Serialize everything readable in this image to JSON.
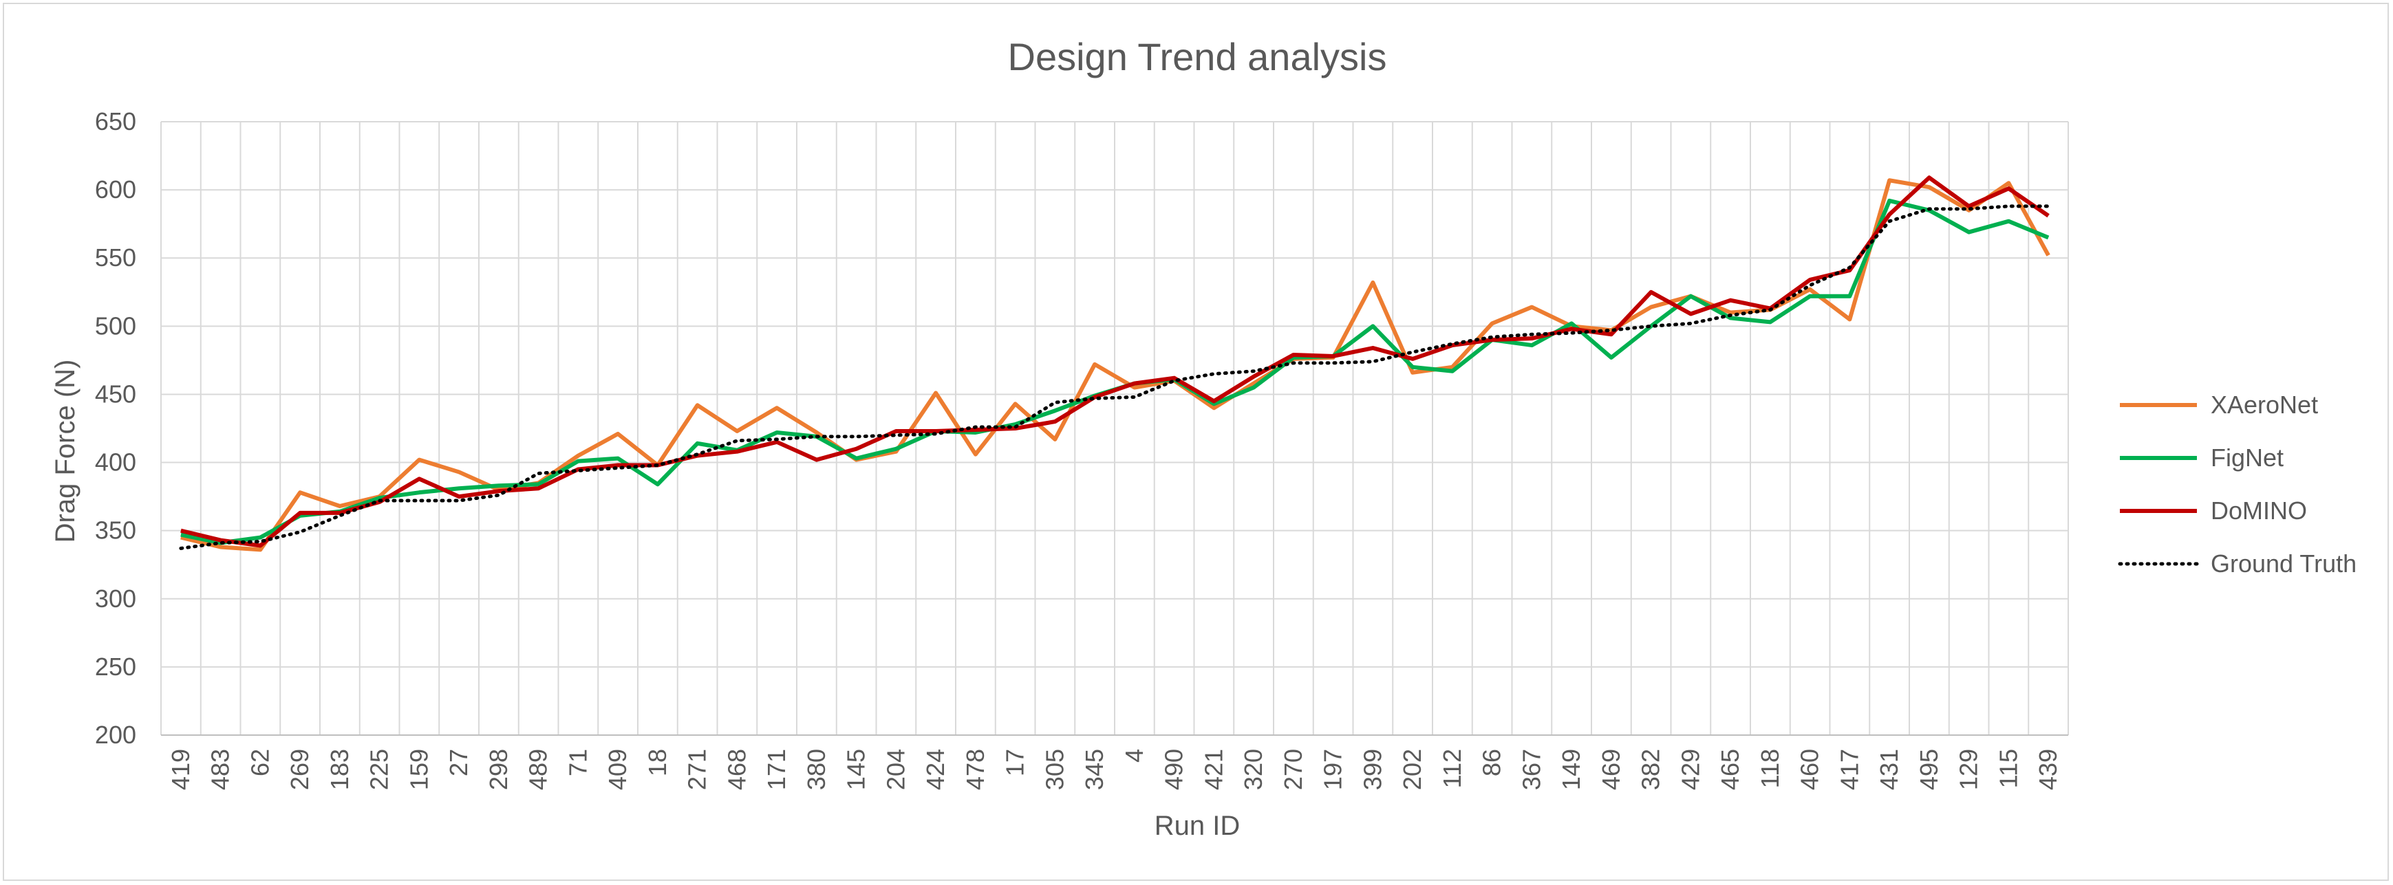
{
  "chart_data": {
    "type": "line",
    "title": "Design Trend analysis",
    "xlabel": "Run ID",
    "ylabel": "Drag Force (N)",
    "ylim": [
      200,
      650
    ],
    "ytick_step": 50,
    "grid": true,
    "legend_position": "right",
    "categories": [
      "419",
      "483",
      "62",
      "269",
      "183",
      "225",
      "159",
      "27",
      "298",
      "489",
      "71",
      "409",
      "18",
      "271",
      "468",
      "171",
      "380",
      "145",
      "204",
      "424",
      "478",
      "17",
      "305",
      "345",
      "4",
      "490",
      "421",
      "320",
      "270",
      "197",
      "399",
      "202",
      "112",
      "86",
      "367",
      "149",
      "469",
      "382",
      "429",
      "465",
      "118",
      "460",
      "417",
      "431",
      "495",
      "129",
      "115",
      "439"
    ],
    "series": [
      {
        "name": "XAeroNet",
        "color": "#ED7D31",
        "dash": "solid",
        "values": [
          345,
          338,
          336,
          378,
          368,
          375,
          402,
          393,
          380,
          385,
          405,
          421,
          398,
          442,
          423,
          440,
          422,
          402,
          408,
          451,
          406,
          443,
          417,
          472,
          455,
          460,
          440,
          458,
          476,
          477,
          532,
          466,
          470,
          502,
          514,
          500,
          497,
          514,
          522,
          510,
          512,
          527,
          505,
          607,
          602,
          585,
          605,
          552
        ]
      },
      {
        "name": "FigNet",
        "color": "#00B050",
        "dash": "solid",
        "values": [
          347,
          341,
          345,
          361,
          364,
          374,
          378,
          381,
          383,
          384,
          401,
          403,
          384,
          414,
          409,
          422,
          419,
          403,
          410,
          423,
          422,
          428,
          438,
          449,
          458,
          461,
          443,
          455,
          477,
          478,
          500,
          470,
          467,
          490,
          486,
          502,
          477,
          500,
          522,
          506,
          503,
          522,
          522,
          592,
          585,
          569,
          577,
          565
        ]
      },
      {
        "name": "DoMINO",
        "color": "#C00000",
        "dash": "solid",
        "values": [
          350,
          343,
          339,
          363,
          363,
          371,
          388,
          375,
          379,
          381,
          395,
          398,
          398,
          405,
          408,
          415,
          402,
          410,
          423,
          423,
          424,
          425,
          430,
          448,
          458,
          462,
          445,
          463,
          479,
          478,
          484,
          476,
          486,
          490,
          491,
          498,
          494,
          525,
          509,
          519,
          513,
          534,
          541,
          582,
          609,
          588,
          601,
          581
        ]
      },
      {
        "name": "Ground Truth",
        "color": "#000000",
        "dash": "dotted",
        "values": [
          337,
          341,
          342,
          349,
          361,
          372,
          372,
          372,
          376,
          392,
          394,
          396,
          398,
          406,
          416,
          417,
          419,
          419,
          420,
          421,
          426,
          426,
          444,
          447,
          448,
          460,
          465,
          467,
          473,
          473,
          474,
          481,
          487,
          492,
          494,
          495,
          497,
          500,
          502,
          508,
          512,
          530,
          543,
          577,
          586,
          586,
          588,
          588
        ]
      }
    ]
  }
}
